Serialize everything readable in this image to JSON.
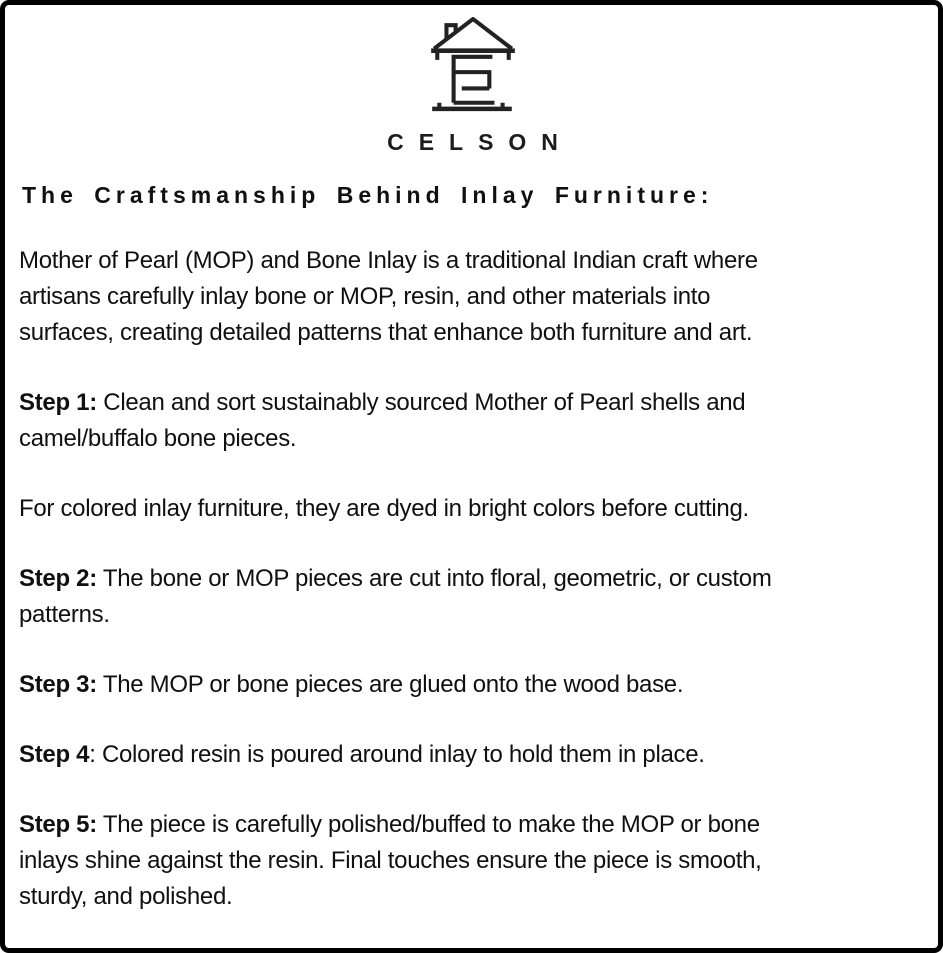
{
  "brand": {
    "name": "CELSON",
    "logo_icon": "house-with-s-monogram"
  },
  "colors": {
    "text": "#111111",
    "border": "#000000",
    "background": "#ffffff",
    "logo_stroke": "#222222"
  },
  "article": {
    "heading": "The Craftsmanship Behind Inlay Furniture:",
    "paragraphs": [
      {
        "label": "",
        "text": "Mother of Pearl (MOP) and Bone Inlay is a traditional Indian craft where\nartisans carefully inlay bone or MOP, resin, and other materials into\nsurfaces, creating detailed patterns that enhance both furniture and art."
      },
      {
        "label": "Step 1:",
        "text": " Clean and sort sustainably sourced Mother of Pearl shells and\ncamel/buffalo bone pieces."
      },
      {
        "label": "",
        "text": "For colored inlay furniture, they are dyed in bright colors before cutting."
      },
      {
        "label": "Step 2:",
        "text": " The bone or MOP pieces are cut into floral, geometric, or custom\npatterns."
      },
      {
        "label": "Step 3:",
        "text": " The MOP or bone pieces are glued onto the wood base."
      },
      {
        "label": "Step 4",
        "text": ": Colored resin is poured around inlay to hold them in place."
      },
      {
        "label": "Step 5:",
        "text": " The piece is carefully polished/buffed to make the MOP or bone\ninlays shine against the resin. Final touches ensure the piece is smooth,\nsturdy, and polished."
      }
    ]
  }
}
